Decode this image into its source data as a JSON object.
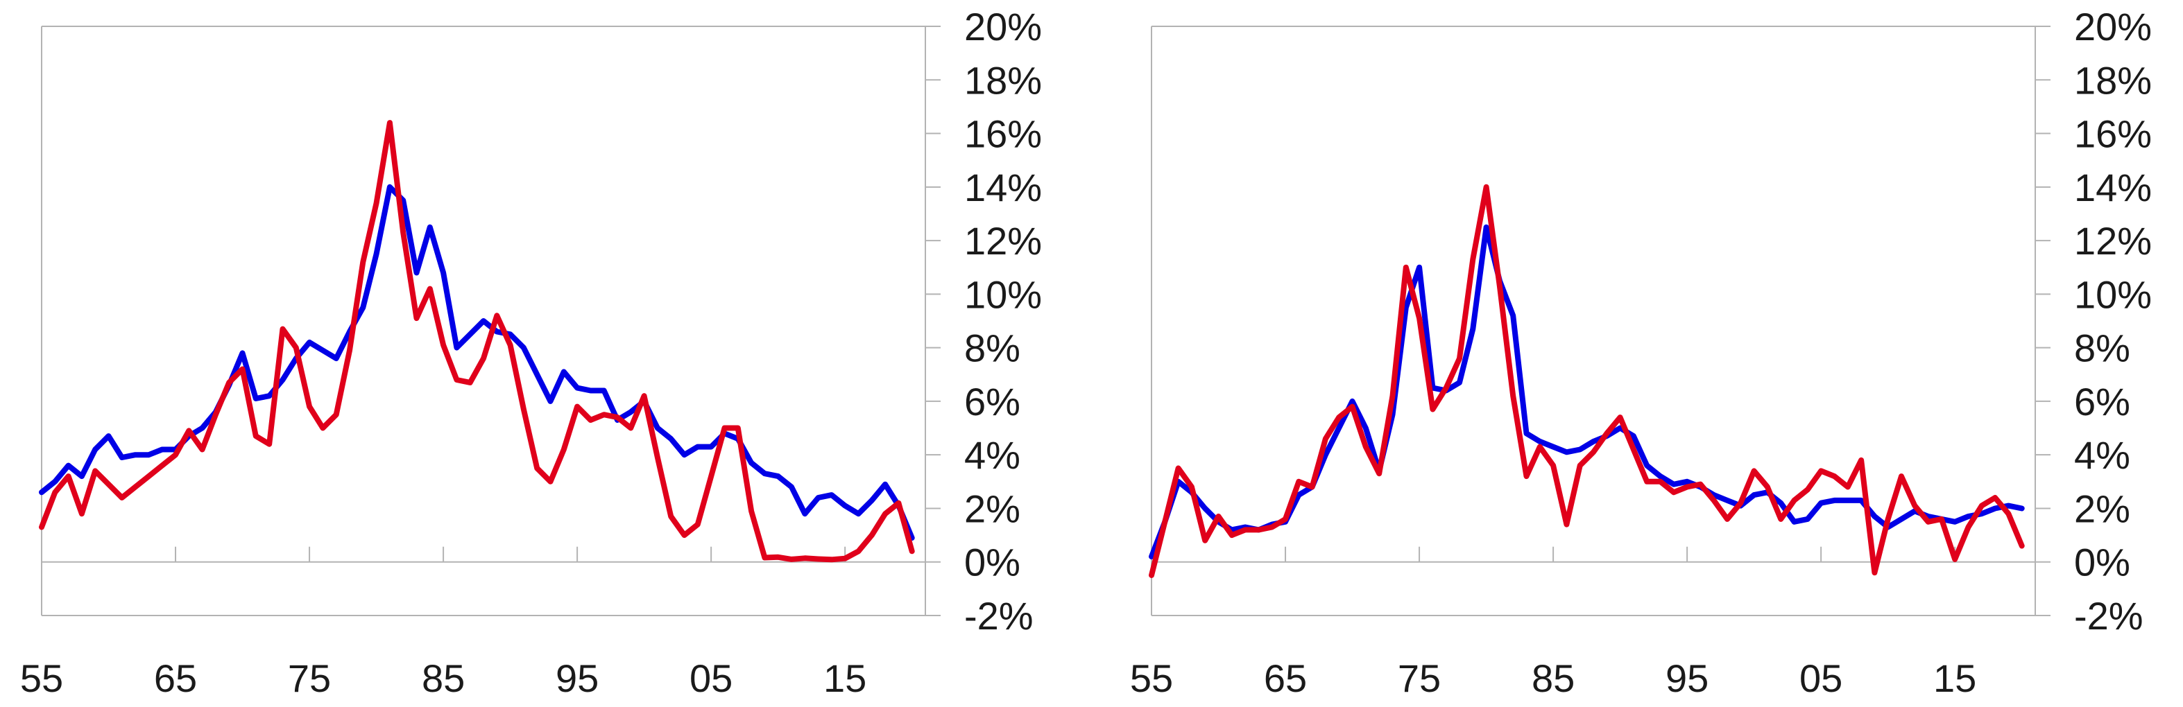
{
  "chart_data": [
    {
      "type": "line",
      "ylim": [
        -2,
        20
      ],
      "y_ticks": [
        -2,
        0,
        2,
        4,
        6,
        8,
        10,
        12,
        14,
        16,
        18,
        20
      ],
      "y_tick_labels": [
        "-2%",
        "0%",
        "2%",
        "4%",
        "6%",
        "8%",
        "10%",
        "12%",
        "14%",
        "16%",
        "18%",
        "20%"
      ],
      "y_axis_position": "right",
      "xlim": [
        1955,
        2021
      ],
      "x_ticks": [
        1955,
        1965,
        1975,
        1985,
        1995,
        2005,
        2015
      ],
      "x_tick_labels": [
        "55",
        "65",
        "75",
        "85",
        "95",
        "05",
        "15"
      ],
      "grid": false,
      "legend": "none",
      "series": [
        {
          "color": "#0000e6",
          "points": [
            [
              1955,
              2.6
            ],
            [
              1956,
              3.0
            ],
            [
              1957,
              3.6
            ],
            [
              1958,
              3.2
            ],
            [
              1959,
              4.2
            ],
            [
              1960,
              4.7
            ],
            [
              1961,
              3.9
            ],
            [
              1962,
              4.0
            ],
            [
              1963,
              4.0
            ],
            [
              1964,
              4.2
            ],
            [
              1965,
              4.2
            ],
            [
              1966,
              4.7
            ],
            [
              1967,
              5.0
            ],
            [
              1968,
              5.6
            ],
            [
              1969,
              6.6
            ],
            [
              1970,
              7.8
            ],
            [
              1971,
              6.1
            ],
            [
              1972,
              6.2
            ],
            [
              1973,
              6.8
            ],
            [
              1974,
              7.6
            ],
            [
              1975,
              8.2
            ],
            [
              1976,
              7.9
            ],
            [
              1977,
              7.6
            ],
            [
              1978,
              8.6
            ],
            [
              1979,
              9.5
            ],
            [
              1980,
              11.5
            ],
            [
              1981,
              14.0
            ],
            [
              1982,
              13.5
            ],
            [
              1983,
              10.8
            ],
            [
              1984,
              12.5
            ],
            [
              1985,
              10.8
            ],
            [
              1986,
              8.0
            ],
            [
              1987,
              8.5
            ],
            [
              1988,
              9.0
            ],
            [
              1989,
              8.6
            ],
            [
              1990,
              8.5
            ],
            [
              1991,
              8.0
            ],
            [
              1992,
              7.0
            ],
            [
              1993,
              6.0
            ],
            [
              1994,
              7.1
            ],
            [
              1995,
              6.5
            ],
            [
              1996,
              6.4
            ],
            [
              1997,
              6.4
            ],
            [
              1998,
              5.3
            ],
            [
              1999,
              5.6
            ],
            [
              2000,
              6.0
            ],
            [
              2001,
              5.0
            ],
            [
              2002,
              4.6
            ],
            [
              2003,
              4.0
            ],
            [
              2004,
              4.3
            ],
            [
              2005,
              4.3
            ],
            [
              2006,
              4.8
            ],
            [
              2007,
              4.6
            ],
            [
              2008,
              3.7
            ],
            [
              2009,
              3.3
            ],
            [
              2010,
              3.2
            ],
            [
              2011,
              2.8
            ],
            [
              2012,
              1.8
            ],
            [
              2013,
              2.4
            ],
            [
              2014,
              2.5
            ],
            [
              2015,
              2.1
            ],
            [
              2016,
              1.8
            ],
            [
              2017,
              2.3
            ],
            [
              2018,
              2.9
            ],
            [
              2019,
              2.1
            ],
            [
              2020,
              0.9
            ]
          ]
        },
        {
          "color": "#e0001b",
          "points": [
            [
              1955,
              1.3
            ],
            [
              1956,
              2.6
            ],
            [
              1957,
              3.2
            ],
            [
              1958,
              1.8
            ],
            [
              1959,
              3.4
            ],
            [
              1960,
              2.9
            ],
            [
              1961,
              2.4
            ],
            [
              1962,
              2.8
            ],
            [
              1963,
              3.2
            ],
            [
              1964,
              3.6
            ],
            [
              1965,
              4.0
            ],
            [
              1966,
              4.9
            ],
            [
              1967,
              4.2
            ],
            [
              1968,
              5.5
            ],
            [
              1969,
              6.7
            ],
            [
              1970,
              7.2
            ],
            [
              1971,
              4.7
            ],
            [
              1972,
              4.4
            ],
            [
              1973,
              8.7
            ],
            [
              1974,
              8.0
            ],
            [
              1975,
              5.8
            ],
            [
              1976,
              5.0
            ],
            [
              1977,
              5.5
            ],
            [
              1978,
              7.9
            ],
            [
              1979,
              11.2
            ],
            [
              1980,
              13.4
            ],
            [
              1981,
              16.4
            ],
            [
              1982,
              12.3
            ],
            [
              1983,
              9.1
            ],
            [
              1984,
              10.2
            ],
            [
              1985,
              8.1
            ],
            [
              1986,
              6.8
            ],
            [
              1987,
              6.7
            ],
            [
              1988,
              7.6
            ],
            [
              1989,
              9.2
            ],
            [
              1990,
              8.1
            ],
            [
              1991,
              5.7
            ],
            [
              1992,
              3.5
            ],
            [
              1993,
              3.0
            ],
            [
              1994,
              4.2
            ],
            [
              1995,
              5.8
            ],
            [
              1996,
              5.3
            ],
            [
              1997,
              5.5
            ],
            [
              1998,
              5.4
            ],
            [
              1999,
              5.0
            ],
            [
              2000,
              6.2
            ],
            [
              2001,
              3.9
            ],
            [
              2002,
              1.7
            ],
            [
              2003,
              1.0
            ],
            [
              2004,
              1.4
            ],
            [
              2005,
              3.2
            ],
            [
              2006,
              5.0
            ],
            [
              2007,
              5.0
            ],
            [
              2008,
              1.9
            ],
            [
              2009,
              0.16
            ],
            [
              2010,
              0.18
            ],
            [
              2011,
              0.1
            ],
            [
              2012,
              0.14
            ],
            [
              2013,
              0.11
            ],
            [
              2014,
              0.09
            ],
            [
              2015,
              0.13
            ],
            [
              2016,
              0.4
            ],
            [
              2017,
              1.0
            ],
            [
              2018,
              1.8
            ],
            [
              2019,
              2.2
            ],
            [
              2020,
              0.4
            ]
          ]
        }
      ]
    },
    {
      "type": "line",
      "ylim": [
        -2,
        20
      ],
      "y_ticks": [
        -2,
        0,
        2,
        4,
        6,
        8,
        10,
        12,
        14,
        16,
        18,
        20
      ],
      "y_tick_labels": [
        "-2%",
        "0%",
        "2%",
        "4%",
        "6%",
        "8%",
        "10%",
        "12%",
        "14%",
        "16%",
        "18%",
        "20%"
      ],
      "y_axis_position": "right",
      "xlim": [
        1955,
        2021
      ],
      "x_ticks": [
        1955,
        1965,
        1975,
        1985,
        1995,
        2005,
        2015
      ],
      "x_tick_labels": [
        "55",
        "65",
        "75",
        "85",
        "95",
        "05",
        "15"
      ],
      "grid": false,
      "legend": "none",
      "series": [
        {
          "color": "#0000e6",
          "points": [
            [
              1955,
              0.2
            ],
            [
              1956,
              1.5
            ],
            [
              1957,
              3.0
            ],
            [
              1958,
              2.6
            ],
            [
              1959,
              2.0
            ],
            [
              1960,
              1.5
            ],
            [
              1961,
              1.2
            ],
            [
              1962,
              1.3
            ],
            [
              1963,
              1.2
            ],
            [
              1964,
              1.4
            ],
            [
              1965,
              1.5
            ],
            [
              1966,
              2.5
            ],
            [
              1967,
              2.8
            ],
            [
              1968,
              4.0
            ],
            [
              1969,
              5.0
            ],
            [
              1970,
              6.0
            ],
            [
              1971,
              5.0
            ],
            [
              1972,
              3.4
            ],
            [
              1973,
              5.5
            ],
            [
              1974,
              9.5
            ],
            [
              1975,
              11.0
            ],
            [
              1976,
              6.5
            ],
            [
              1977,
              6.4
            ],
            [
              1978,
              6.7
            ],
            [
              1979,
              8.7
            ],
            [
              1980,
              12.5
            ],
            [
              1981,
              10.5
            ],
            [
              1982,
              9.2
            ],
            [
              1983,
              4.8
            ],
            [
              1984,
              4.5
            ],
            [
              1985,
              4.3
            ],
            [
              1986,
              4.1
            ],
            [
              1987,
              4.2
            ],
            [
              1988,
              4.5
            ],
            [
              1989,
              4.7
            ],
            [
              1990,
              5.0
            ],
            [
              1991,
              4.7
            ],
            [
              1992,
              3.6
            ],
            [
              1993,
              3.2
            ],
            [
              1994,
              2.9
            ],
            [
              1995,
              3.0
            ],
            [
              1996,
              2.8
            ],
            [
              1997,
              2.5
            ],
            [
              1998,
              2.3
            ],
            [
              1999,
              2.1
            ],
            [
              2000,
              2.5
            ],
            [
              2001,
              2.6
            ],
            [
              2002,
              2.2
            ],
            [
              2003,
              1.5
            ],
            [
              2004,
              1.6
            ],
            [
              2005,
              2.2
            ],
            [
              2006,
              2.3
            ],
            [
              2007,
              2.3
            ],
            [
              2008,
              2.3
            ],
            [
              2009,
              1.7
            ],
            [
              2010,
              1.3
            ],
            [
              2011,
              1.6
            ],
            [
              2012,
              1.9
            ],
            [
              2013,
              1.7
            ],
            [
              2014,
              1.6
            ],
            [
              2015,
              1.5
            ],
            [
              2016,
              1.7
            ],
            [
              2017,
              1.8
            ],
            [
              2018,
              2.0
            ],
            [
              2019,
              2.1
            ],
            [
              2020,
              2.0
            ]
          ]
        },
        {
          "color": "#e0001b",
          "points": [
            [
              1955,
              -0.5
            ],
            [
              1956,
              1.5
            ],
            [
              1957,
              3.5
            ],
            [
              1958,
              2.8
            ],
            [
              1959,
              0.8
            ],
            [
              1960,
              1.7
            ],
            [
              1961,
              1.0
            ],
            [
              1962,
              1.2
            ],
            [
              1963,
              1.2
            ],
            [
              1964,
              1.3
            ],
            [
              1965,
              1.6
            ],
            [
              1966,
              3.0
            ],
            [
              1967,
              2.8
            ],
            [
              1968,
              4.6
            ],
            [
              1969,
              5.4
            ],
            [
              1970,
              5.8
            ],
            [
              1971,
              4.3
            ],
            [
              1972,
              3.3
            ],
            [
              1973,
              6.2
            ],
            [
              1974,
              11.0
            ],
            [
              1975,
              9.1
            ],
            [
              1976,
              5.7
            ],
            [
              1977,
              6.5
            ],
            [
              1978,
              7.6
            ],
            [
              1979,
              11.3
            ],
            [
              1980,
              14.0
            ],
            [
              1981,
              10.3
            ],
            [
              1982,
              6.2
            ],
            [
              1983,
              3.2
            ],
            [
              1984,
              4.3
            ],
            [
              1985,
              3.6
            ],
            [
              1986,
              1.4
            ],
            [
              1987,
              3.6
            ],
            [
              1988,
              4.1
            ],
            [
              1989,
              4.8
            ],
            [
              1990,
              5.4
            ],
            [
              1991,
              4.2
            ],
            [
              1992,
              3.0
            ],
            [
              1993,
              3.0
            ],
            [
              1994,
              2.6
            ],
            [
              1995,
              2.8
            ],
            [
              1996,
              2.9
            ],
            [
              1997,
              2.3
            ],
            [
              1998,
              1.6
            ],
            [
              1999,
              2.2
            ],
            [
              2000,
              3.4
            ],
            [
              2001,
              2.8
            ],
            [
              2002,
              1.6
            ],
            [
              2003,
              2.3
            ],
            [
              2004,
              2.7
            ],
            [
              2005,
              3.4
            ],
            [
              2006,
              3.2
            ],
            [
              2007,
              2.8
            ],
            [
              2008,
              3.8
            ],
            [
              2009,
              -0.4
            ],
            [
              2010,
              1.6
            ],
            [
              2011,
              3.2
            ],
            [
              2012,
              2.1
            ],
            [
              2013,
              1.5
            ],
            [
              2014,
              1.6
            ],
            [
              2015,
              0.1
            ],
            [
              2016,
              1.3
            ],
            [
              2017,
              2.1
            ],
            [
              2018,
              2.4
            ],
            [
              2019,
              1.8
            ],
            [
              2020,
              0.6
            ]
          ]
        }
      ]
    }
  ]
}
